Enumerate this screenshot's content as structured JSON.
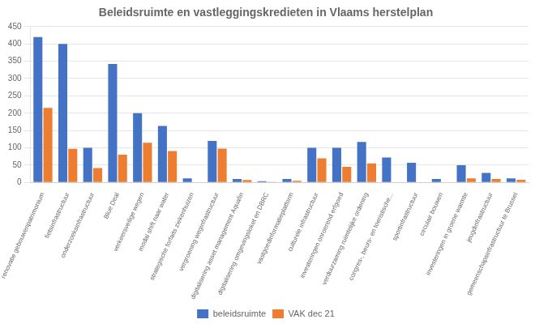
{
  "chart_data": {
    "type": "bar",
    "title": "Beleidsruimte en vastleggingskredieten in Vlaams herstelplan",
    "categories": [
      "renovatie gebouwenpatrimonium",
      "fietsinfrastructuur",
      "onderzoeksinfrastructuur",
      "Blue Deal",
      "verkeersveilige wegen",
      "modal shift naar water",
      "strategische forfaits ziekenhuizen",
      "vergroening weginfrastructuur",
      "digitalisering asset management Aquafin",
      "digitalisering omgevingsloket en DBRC",
      "vastgoedinformatieplatform",
      "culturele infrastructuur",
      "investeringen onroerend erfgoed",
      "verduurzaming ruimtelijke ordening",
      "congres-, beurs- en toeristische...",
      "sportinfrastructuur",
      "circulair bouwen",
      "investeringen in groene warmte",
      "jeugdinfrastructuur",
      "gemeenschapsinfrastructuur te Brussel"
    ],
    "series": [
      {
        "name": "beleidsruimte",
        "color": "#4472C4",
        "values": [
          420,
          400,
          100,
          342,
          200,
          163,
          12,
          120,
          10,
          4,
          10,
          100,
          100,
          117,
          72,
          57,
          10,
          50,
          28,
          12
        ]
      },
      {
        "name": "VAK dec 21",
        "color": "#ED7D31",
        "values": [
          215,
          97,
          42,
          80,
          115,
          91,
          0,
          98,
          7,
          2,
          5,
          70,
          45,
          55,
          0,
          0,
          0,
          12,
          10,
          8
        ]
      }
    ],
    "ylim": [
      0,
      450
    ],
    "yticks": [
      0,
      50,
      100,
      150,
      200,
      250,
      300,
      350,
      400,
      450
    ],
    "grid": true,
    "legend": "bottom"
  }
}
